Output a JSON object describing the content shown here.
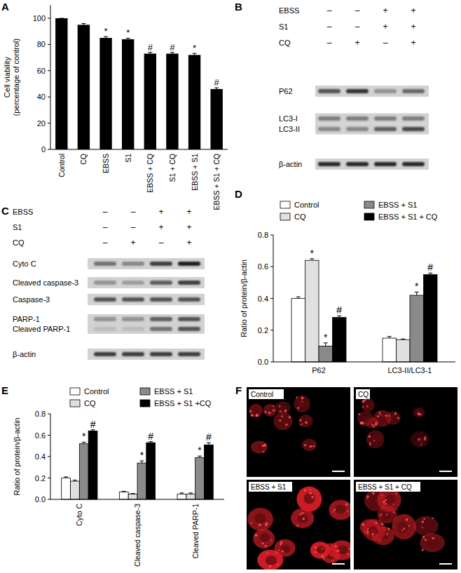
{
  "chart_data": [
    {
      "type": "bar",
      "title": "A",
      "y_label": [
        "Cell viability",
        "(percentage of control)"
      ],
      "categories": [
        "Control",
        "CQ",
        "EBSS",
        "S1",
        "EBSS + CQ",
        "S1 + CQ",
        "EBSS + S1",
        "EBSS + S1 + CQ"
      ],
      "values": [
        100,
        95,
        85,
        84,
        73,
        73,
        72,
        46
      ],
      "errors": [
        0,
        1,
        1,
        0.8,
        1,
        1,
        1.2,
        1
      ],
      "significance": [
        null,
        null,
        "*",
        "*",
        "#",
        "#",
        "*",
        "#"
      ],
      "color": "#000000",
      "ylim": [
        0,
        110
      ],
      "yticks": [
        0,
        20,
        40,
        60,
        80,
        100
      ]
    },
    {
      "type": "bar",
      "title": "D",
      "y_label": [
        "Ratio of protein/β-actin"
      ],
      "categories": [
        "P62",
        "LC3-II/LC3-1"
      ],
      "series": [
        {
          "name": "Control",
          "color": "#ffffff",
          "values": [
            0.4,
            0.15
          ],
          "errors": [
            0.01,
            0.01
          ],
          "significance": [
            null,
            null
          ]
        },
        {
          "name": "CQ",
          "color": "#e0e0e0",
          "values": [
            0.64,
            0.14
          ],
          "errors": [
            0.01,
            0.005
          ],
          "significance": [
            "*",
            null
          ]
        },
        {
          "name": "EBSS + S1",
          "color": "#8a8a8a",
          "values": [
            0.1,
            0.42
          ],
          "errors": [
            0.02,
            0.02
          ],
          "significance": [
            "*",
            "*"
          ]
        },
        {
          "name": "EBSS + S1 + CQ",
          "color": "#000000",
          "values": [
            0.28,
            0.55
          ],
          "errors": [
            0.01,
            0.01
          ],
          "significance": [
            "#",
            "#"
          ]
        }
      ],
      "ylim": [
        0,
        0.8
      ],
      "yticks": [
        {
          "value": 0,
          "label": "0.0"
        },
        0.2,
        0.4,
        0.6,
        0.8
      ],
      "legend": "top"
    },
    {
      "type": "bar",
      "title": "E",
      "y_label": [
        "Ratio of protein/β-actin"
      ],
      "categories": [
        "Cyto C",
        "Cleaved caspase-3",
        "Cleaved PARP-1"
      ],
      "series": [
        {
          "name": "Control",
          "color": "#ffffff",
          "values": [
            0.2,
            0.07,
            0.05
          ],
          "errors": [
            0.01,
            0.005,
            0.01
          ],
          "significance": [
            null,
            null,
            null
          ]
        },
        {
          "name": "CQ",
          "color": "#e0e0e0",
          "values": [
            0.17,
            0.05,
            0.05
          ],
          "errors": [
            0.01,
            0.005,
            0.01
          ],
          "significance": [
            null,
            null,
            null
          ]
        },
        {
          "name": "EBSS + S1",
          "color": "#8a8a8a",
          "values": [
            0.52,
            0.34,
            0.39
          ],
          "errors": [
            0.015,
            0.02,
            0.015
          ],
          "significance": [
            "*",
            "*",
            "*"
          ]
        },
        {
          "name": "EBSS + S1 +CQ",
          "color": "#000000",
          "values": [
            0.64,
            0.53,
            0.51
          ],
          "errors": [
            0.01,
            0.01,
            0.02
          ],
          "significance": [
            "#",
            "#",
            "#"
          ]
        }
      ],
      "ylim": [
        0,
        0.8
      ],
      "yticks": [
        {
          "value": 0,
          "label": "0.0"
        },
        0.2,
        0.4,
        0.6,
        0.8
      ],
      "legend": "top"
    }
  ],
  "blots": [
    {
      "title": "B",
      "conditions": [
        {
          "name": "EBSS",
          "states": [
            "–",
            "–",
            "+",
            "+"
          ]
        },
        {
          "name": "S1",
          "states": [
            "–",
            "–",
            "+",
            "+"
          ]
        },
        {
          "name": "CQ",
          "states": [
            "–",
            "+",
            "–",
            "+"
          ]
        }
      ],
      "rows": [
        {
          "label": "P62",
          "intensity": [
            0.6,
            0.75,
            0.3,
            0.5
          ]
        },
        {
          "label": "LC3-I",
          "intensity": [
            0.4,
            0.4,
            0.4,
            0.4
          ]
        },
        {
          "label": "LC3-II",
          "intensity": [
            0.35,
            0.35,
            0.55,
            0.65
          ]
        },
        {
          "label": "β-actin",
          "intensity": [
            0.8,
            0.8,
            0.8,
            0.8
          ]
        }
      ]
    },
    {
      "title": "C",
      "conditions": [
        {
          "name": "EBSS",
          "states": [
            "–",
            "–",
            "+",
            "+"
          ]
        },
        {
          "name": "S1",
          "states": [
            "–",
            "–",
            "+",
            "+"
          ]
        },
        {
          "name": "CQ",
          "states": [
            "–",
            "+",
            "–",
            "+"
          ]
        }
      ],
      "rows": [
        {
          "label": "Cyto C",
          "intensity": [
            0.45,
            0.35,
            0.7,
            0.85
          ]
        },
        {
          "label": "Cleaved caspase-3",
          "intensity": [
            0.3,
            0.25,
            0.55,
            0.7
          ]
        },
        {
          "label": "Caspase-3",
          "intensity": [
            0.6,
            0.6,
            0.6,
            0.6
          ]
        },
        {
          "label": "PARP-1",
          "intensity": [
            0.3,
            0.3,
            0.55,
            0.6
          ]
        },
        {
          "label": "Cleaved PARP-1",
          "intensity": [
            0.1,
            0.1,
            0.45,
            0.6
          ]
        },
        {
          "label": "β-actin",
          "intensity": [
            0.7,
            0.7,
            0.7,
            0.7
          ]
        }
      ]
    }
  ],
  "micrographs": {
    "title": "F",
    "images": [
      {
        "label": "Control",
        "intensity": 0.5
      },
      {
        "label": "CQ",
        "intensity": 0.4
      },
      {
        "label": "EBSS + S1",
        "intensity": 0.95
      },
      {
        "label": "EBSS + S1 + CQ",
        "intensity": 0.6
      }
    ]
  }
}
